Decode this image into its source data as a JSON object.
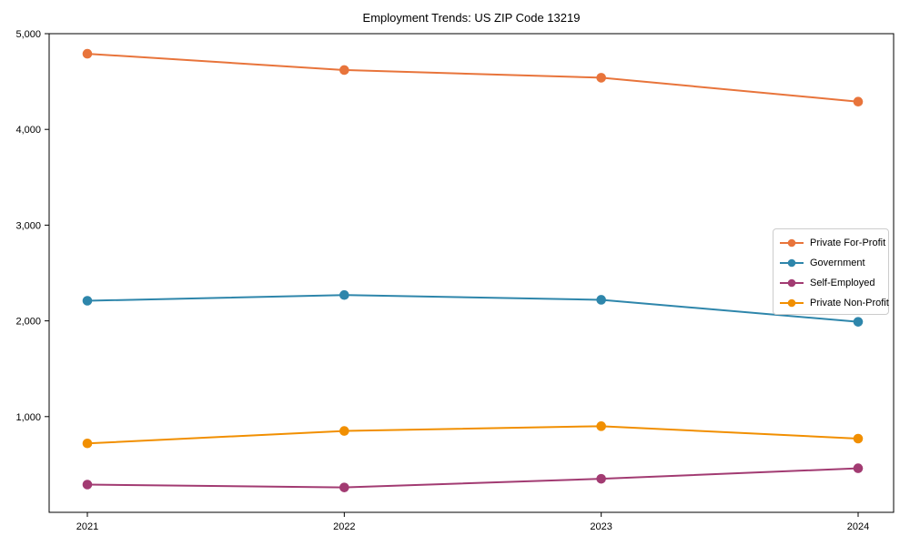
{
  "chart_data": {
    "type": "line",
    "title": "Employment Trends: US ZIP Code 13219",
    "x": [
      2021,
      2022,
      2023,
      2024
    ],
    "x_tick_labels": [
      "2021",
      "2022",
      "2023",
      "2024"
    ],
    "series": [
      {
        "name": "Private For-Profit",
        "color": "#E8743B",
        "values": [
          4790,
          4620,
          4540,
          4290
        ]
      },
      {
        "name": "Government",
        "color": "#2E86AB",
        "values": [
          2210,
          2270,
          2220,
          1990
        ]
      },
      {
        "name": "Self-Employed",
        "color": "#A23B72",
        "values": [
          290,
          260,
          350,
          460
        ]
      },
      {
        "name": "Private Non-Profit",
        "color": "#F18F01",
        "values": [
          720,
          850,
          900,
          770
        ]
      }
    ],
    "ylim": [
      0,
      5000
    ],
    "yticks": [
      1000,
      2000,
      3000,
      4000,
      5000
    ],
    "ytick_labels": [
      "1,000",
      "2,000",
      "3,000",
      "4,000",
      "5,000"
    ],
    "xlabel": "",
    "ylabel": "",
    "grid": false,
    "legend_position": "center-right",
    "marker": "circle",
    "background_color": "#ffffff",
    "axis_color": "#000000"
  }
}
